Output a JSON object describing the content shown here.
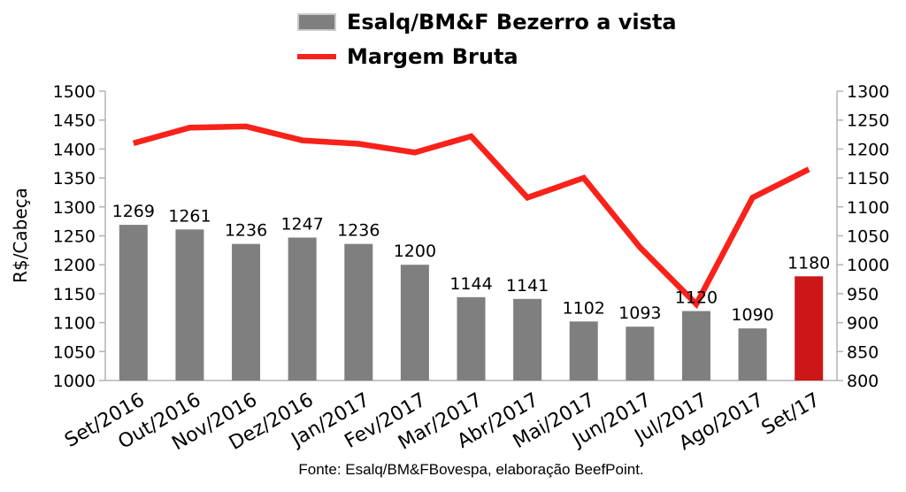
{
  "legend": {
    "items": [
      {
        "label": "Esalq/BM&F Bezerro a vista",
        "type": "bar",
        "color": "#7f7f7f"
      },
      {
        "label": "Margem Bruta",
        "type": "line",
        "color": "#f8221a"
      }
    ]
  },
  "footer": {
    "text": "Fonte: Esalq/BM&FBovespa, elaboração BeefPoint."
  },
  "chart_data": {
    "type": "bar",
    "title": "",
    "categories": [
      "Set/2016",
      "Out/2016",
      "Nov/2016",
      "Dez/2016",
      "Jan/2017",
      "Fev/2017",
      "Mar/2017",
      "Abr/2017",
      "Mai/2017",
      "Jun/2017",
      "Jul/2017",
      "Ago/2017",
      "Set/17"
    ],
    "series": [
      {
        "name": "Esalq/BM&F Bezerro a vista",
        "type": "bar",
        "axis": "left",
        "values": [
          1269,
          1261,
          1236,
          1247,
          1236,
          1200,
          1144,
          1141,
          1102,
          1093,
          1120,
          1090,
          1180
        ],
        "color": "#7f7f7f",
        "highlight": {
          "index": 12,
          "color": "#cd1618"
        },
        "data_labels": true
      },
      {
        "name": "Margem Bruta",
        "type": "line",
        "axis": "right",
        "values": [
          1210,
          1237,
          1239,
          1215,
          1209,
          1194,
          1222,
          1116,
          1150,
          1030,
          932,
          1116,
          1165
        ],
        "color": "#f8221a",
        "stroke_width": 6.5
      }
    ],
    "left_axis": {
      "title": "R$/Cabeça",
      "min": 1000,
      "max": 1500,
      "step": 50
    },
    "right_axis": {
      "title": "",
      "min": 800,
      "max": 1300,
      "step": 50
    },
    "grid": false,
    "legend_position": "top",
    "axis_color": "#b3b3b3"
  }
}
